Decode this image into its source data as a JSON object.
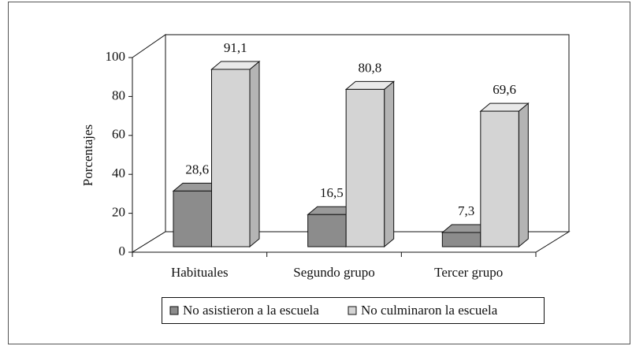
{
  "chart_data": {
    "type": "bar3d",
    "categories": [
      "Habituales",
      "Segundo grupo",
      "Tercer grupo"
    ],
    "series": [
      {
        "name": "No asistieron a la escuela",
        "color": "#8c8c8c",
        "values": [
          28.6,
          16.5,
          7.3
        ],
        "value_labels": [
          "28,6",
          "16,5",
          "7,3"
        ]
      },
      {
        "name": "No culminaron la escuela",
        "color": "#d4d4d4",
        "values": [
          91.1,
          80.8,
          69.6
        ],
        "value_labels": [
          "91,1",
          "80,8",
          "69,6"
        ]
      }
    ],
    "y_label": "Porcentajes",
    "ylim": [
      0,
      100
    ],
    "yticks": [
      0,
      20,
      40,
      60,
      80,
      100
    ],
    "legend": "bottom"
  }
}
